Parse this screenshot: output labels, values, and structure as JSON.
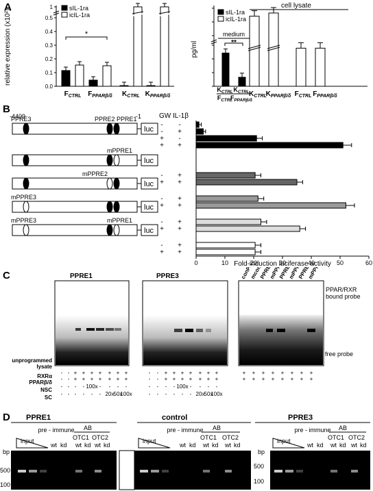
{
  "panels": {
    "A": {
      "label": "A",
      "left_chart": {
        "ylabel": "relative expression (x10²)",
        "legend": [
          "sIL-1ra",
          "icIL-1ra"
        ],
        "yticks": [
          "0.0",
          "0.1",
          "0.2",
          "0.3",
          "0.4",
          "0.5",
          "1"
        ],
        "sig_label": "*",
        "xlabels": [
          {
            "main": "F",
            "sub": "CTRL"
          },
          {
            "main": "F",
            "sub": "PPARβ/δ"
          },
          {
            "main": "K",
            "sub": "CTRL"
          },
          {
            "main": "K",
            "sub": "PPARβ/δ"
          }
        ]
      },
      "right_chart": {
        "ylabel": "pg/ml",
        "legend": [
          "sIL-1ra",
          "icIL-1ra"
        ],
        "yticks": [
          "0",
          "500",
          "1000",
          "1500",
          "2000",
          "2500",
          "3000"
        ],
        "medium_label": "medium",
        "lysate_label": "cell lysate",
        "sig_label": "**",
        "xlabels_medium": [
          {
            "num": "K",
            "numsub": "CTRL",
            "den": "F",
            "densub": "CTRL"
          },
          {
            "num": "K",
            "numsub": "CTRL",
            "den": "F",
            "densub": "PPARβ/δ"
          }
        ],
        "xlabels_lysate": [
          {
            "main": "K",
            "sub": "CTRL"
          },
          {
            "main": "K",
            "sub": "PPARβ/δ"
          },
          {
            "main": "F",
            "sub": "CTRL"
          },
          {
            "main": "F",
            "sub": "PPARβ/δ"
          }
        ]
      }
    },
    "B": {
      "label": "B",
      "start": "-4409",
      "end": "-1",
      "luc": "luc",
      "col_gw": "GW",
      "col_il": "IL-1β",
      "constructs": [
        {
          "labels": [
            "PPRE3",
            "PPRE2 PPRE1"
          ],
          "gw": [
            "-",
            "-",
            "+",
            "+"
          ],
          "il": [
            "-",
            "+",
            "-",
            "+"
          ]
        },
        {
          "labels": [
            "mPPRE1"
          ],
          "gw": [
            "-",
            "+"
          ],
          "il": [
            "+",
            "+"
          ]
        },
        {
          "labels": [
            "mPPRE2"
          ],
          "gw": [
            "-",
            "+"
          ],
          "il": [
            "+",
            "+"
          ]
        },
        {
          "labels": [
            "mPPRE3"
          ],
          "gw": [
            "-",
            "+"
          ],
          "il": [
            "+",
            "+"
          ]
        },
        {
          "labels": [
            "mPPRE3",
            "mPPRE1"
          ],
          "gw": [
            "-",
            "+"
          ],
          "il": [
            "+",
            "+"
          ]
        }
      ],
      "xlabel": "Fold-induction luciferase activity",
      "xticks": [
        "0",
        "10",
        "20",
        "30",
        "40",
        "50",
        "60"
      ]
    },
    "C": {
      "label": "C",
      "gel_titles": [
        "PPRE1",
        "PPRE3"
      ],
      "right_lanes": [
        "conPPRE",
        "mconPPRE",
        "PPRE1",
        "mPPRE1",
        "PPRE2",
        "mPPRE2",
        "PPRE3",
        "mPPRE3"
      ],
      "bound_label": "PPAR/RXR bound probe",
      "free_label": "free probe",
      "row_labels": [
        "unprogrammed lysate",
        "RXRα",
        "PPARβ/δ",
        "NSC",
        "SC"
      ],
      "row_values": {
        "unprog": [
          "-",
          "+",
          "-",
          "-",
          "-",
          "-",
          "-",
          "-",
          "-"
        ],
        "rxr": [
          "-",
          "-",
          "+",
          "+",
          "+",
          "+",
          "+",
          "+",
          "+"
        ],
        "ppar": [
          "-",
          "-",
          "+",
          "+",
          "+",
          "+",
          "+",
          "+",
          "+"
        ],
        "nsc": [
          "-",
          "-",
          "-",
          "-",
          "100x",
          "-",
          "-",
          "-",
          "-"
        ],
        "sc": [
          "-",
          "-",
          "-",
          "-",
          "-",
          "-",
          "20x",
          "50x",
          "100x"
        ]
      },
      "right_row_values": {
        "unprog": [
          "-",
          "-",
          "-",
          "-",
          "-",
          "-",
          "-",
          "-"
        ],
        "rxr": [
          "+",
          "+",
          "+",
          "+",
          "+",
          "+",
          "+",
          "+"
        ],
        "ppar": [
          "+",
          "+",
          "+",
          "+",
          "+",
          "+",
          "+",
          "+"
        ]
      }
    },
    "D": {
      "label": "D",
      "gels": [
        {
          "title": "PPRE1"
        },
        {
          "title": "control"
        },
        {
          "title": "PPRE3"
        }
      ],
      "input_label": "input",
      "preimmune_label": "pre - immune",
      "ab_label": "AB",
      "otc1": "OTC1",
      "otc2": "OTC2",
      "wt": "wt",
      "kd": "kd",
      "bp": "bp",
      "bp500": "500",
      "bp100": "100"
    }
  },
  "chart_data": [
    {
      "type": "bar",
      "ylabel": "relative expression (x10²)",
      "categories": [
        "FCTRL",
        "FPPARβ/δ",
        "KCTRL",
        "KPPARβ/δ"
      ],
      "series": [
        {
          "name": "sIL-1ra",
          "values": [
            0.115,
            0.045,
            0.005,
            0.005
          ]
        },
        {
          "name": "icIL-1ra",
          "values": [
            0.155,
            0.15,
            1,
            1
          ]
        }
      ]
    },
    {
      "type": "bar",
      "ylabel": "pg/ml",
      "series": [
        {
          "name": "sIL-1ra",
          "values": [
            1550,
            420
          ]
        },
        {
          "name": "icIL-1ra",
          "values": [
            4000,
            4200,
            2000,
            2000
          ]
        }
      ]
    },
    {
      "type": "bar",
      "xlabel": "Fold-induction luciferase activity",
      "values": [
        1,
        2.5,
        21,
        51,
        20.5,
        35,
        21.5,
        52,
        22.5,
        36,
        20.5,
        20.5
      ],
      "xlim": [
        0,
        60
      ]
    }
  ]
}
